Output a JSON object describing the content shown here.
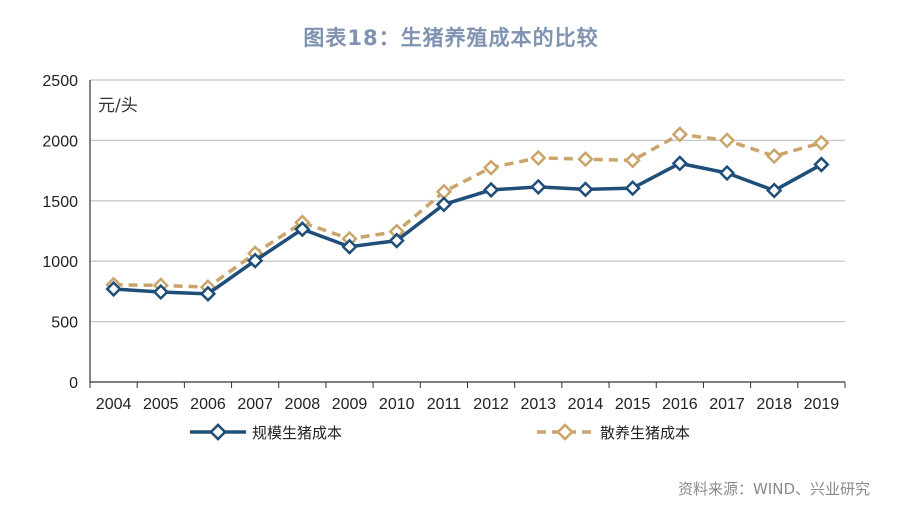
{
  "chart_data": {
    "type": "line",
    "title": "图表18：生猪养殖成本的比较",
    "unit_label": "元/头",
    "categories": [
      "2004",
      "2005",
      "2006",
      "2007",
      "2008",
      "2009",
      "2010",
      "2011",
      "2012",
      "2013",
      "2014",
      "2015",
      "2016",
      "2017",
      "2018",
      "2019"
    ],
    "y_ticks": [
      "0",
      "500",
      "1000",
      "1500",
      "2000",
      "2500"
    ],
    "ylim": [
      0,
      2500
    ],
    "grid": true,
    "legend_position": "bottom",
    "series": [
      {
        "name": "规模生猪成本",
        "color": "#1f4e79",
        "dashed": false,
        "values": [
          770,
          745,
          730,
          1005,
          1265,
          1120,
          1170,
          1470,
          1590,
          1615,
          1595,
          1605,
          1810,
          1730,
          1585,
          1800
        ]
      },
      {
        "name": "散养生猪成本",
        "color": "#c9a56b",
        "dashed": true,
        "values": [
          805,
          800,
          785,
          1065,
          1320,
          1185,
          1245,
          1575,
          1775,
          1855,
          1845,
          1835,
          2050,
          2000,
          1870,
          1980
        ]
      }
    ]
  },
  "source": "资料来源：WIND、兴业研究"
}
